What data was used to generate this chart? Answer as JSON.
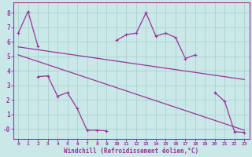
{
  "background_color": "#cbe8e8",
  "grid_color": "#aed4d4",
  "line_color": "#993399",
  "xlabel": "Windchill (Refroidissement éolien,°C)",
  "xlim": [
    -0.5,
    23.5
  ],
  "ylim": [
    -0.7,
    8.7
  ],
  "xticks": [
    0,
    1,
    2,
    3,
    4,
    5,
    6,
    7,
    8,
    9,
    10,
    11,
    12,
    13,
    14,
    15,
    16,
    17,
    18,
    19,
    20,
    21,
    22,
    23
  ],
  "yticks": [
    0,
    1,
    2,
    3,
    4,
    5,
    6,
    7,
    8
  ],
  "ytick_labels": [
    "-0",
    "1",
    "2",
    "3",
    "4",
    "5",
    "6",
    "7",
    "8"
  ],
  "upper_jagged_segs": [
    {
      "x": [
        0,
        1,
        2
      ],
      "y": [
        6.6,
        8.1,
        5.7
      ]
    },
    {
      "x": [
        10,
        11,
        12,
        13,
        14,
        15,
        16,
        17,
        18
      ],
      "y": [
        6.1,
        6.5,
        6.6,
        8.0,
        6.4,
        6.6,
        6.3,
        4.85,
        5.1
      ]
    },
    {
      "x": [
        20,
        21,
        22,
        23
      ],
      "y": [
        2.5,
        1.9,
        -0.2,
        -0.25
      ]
    }
  ],
  "lower_jagged_segs": [
    {
      "x": [
        2,
        3,
        4,
        5,
        6,
        7,
        8,
        9
      ],
      "y": [
        3.6,
        3.65,
        2.25,
        2.5,
        1.4,
        -0.1,
        -0.1,
        -0.15
      ]
    }
  ],
  "upper_trend": {
    "x": [
      0,
      23
    ],
    "y": [
      5.65,
      3.4
    ]
  },
  "lower_trend": {
    "x": [
      0,
      23
    ],
    "y": [
      5.1,
      -0.1
    ]
  }
}
